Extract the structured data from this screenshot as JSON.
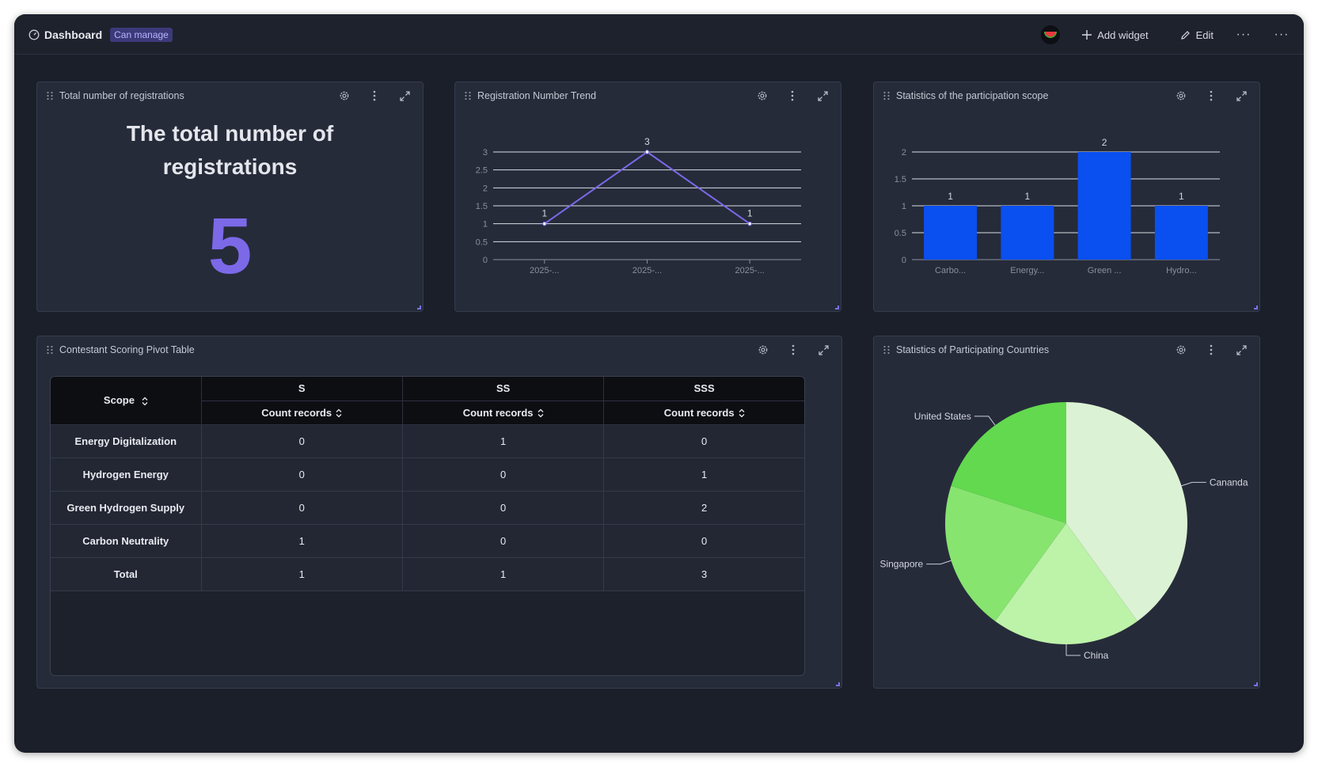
{
  "topbar": {
    "title": "Dashboard",
    "badge": "Can manage",
    "add_widget": "Add widget",
    "edit": "Edit"
  },
  "widgets": {
    "total": {
      "title": "Total number of registrations",
      "heading_line1": "The total number of",
      "heading_line2": "registrations",
      "value": "5"
    },
    "trend": {
      "title": "Registration Number Trend"
    },
    "scope": {
      "title": "Statistics of the participation scope"
    },
    "pivot": {
      "title": "Contestant Scoring Pivot Table",
      "scope_header": "Scope",
      "columns": [
        "S",
        "SS",
        "SSS"
      ],
      "measure": "Count records",
      "rows": [
        {
          "label": "Energy Digitalization",
          "values": [
            "0",
            "1",
            "0"
          ]
        },
        {
          "label": "Hydrogen Energy",
          "values": [
            "0",
            "0",
            "1"
          ]
        },
        {
          "label": "Green Hydrogen Supply",
          "values": [
            "0",
            "0",
            "2"
          ]
        },
        {
          "label": "Carbon Neutrality",
          "values": [
            "1",
            "0",
            "0"
          ]
        },
        {
          "label": "Total",
          "values": [
            "1",
            "1",
            "3"
          ]
        }
      ]
    },
    "countries": {
      "title": "Statistics of Participating Countries"
    }
  },
  "chart_data": [
    {
      "type": "line",
      "categories": [
        "2025-...",
        "2025-...",
        "2025-..."
      ],
      "values": [
        1,
        3,
        1
      ],
      "yticks": [
        "0",
        "0.5",
        "1",
        "1.5",
        "2",
        "2.5",
        "3"
      ],
      "ylim": [
        0,
        3
      ],
      "color": "#7b69e8"
    },
    {
      "type": "bar",
      "categories": [
        "Carbo...",
        "Energy...",
        "Green ...",
        "Hydro..."
      ],
      "values": [
        1,
        1,
        2,
        1
      ],
      "yticks": [
        "0",
        "0.5",
        "1",
        "1.5",
        "2"
      ],
      "ylim": [
        0,
        2
      ],
      "color": "#0a4ff0"
    },
    {
      "type": "pie",
      "slices": [
        {
          "label": "Cananda",
          "value": 2,
          "color": "#dcf2d4"
        },
        {
          "label": "China",
          "value": 1,
          "color": "#bdf2a9"
        },
        {
          "label": "Singapore",
          "value": 1,
          "color": "#87e46f"
        },
        {
          "label": "United States",
          "value": 1,
          "color": "#62d94e"
        }
      ]
    }
  ]
}
